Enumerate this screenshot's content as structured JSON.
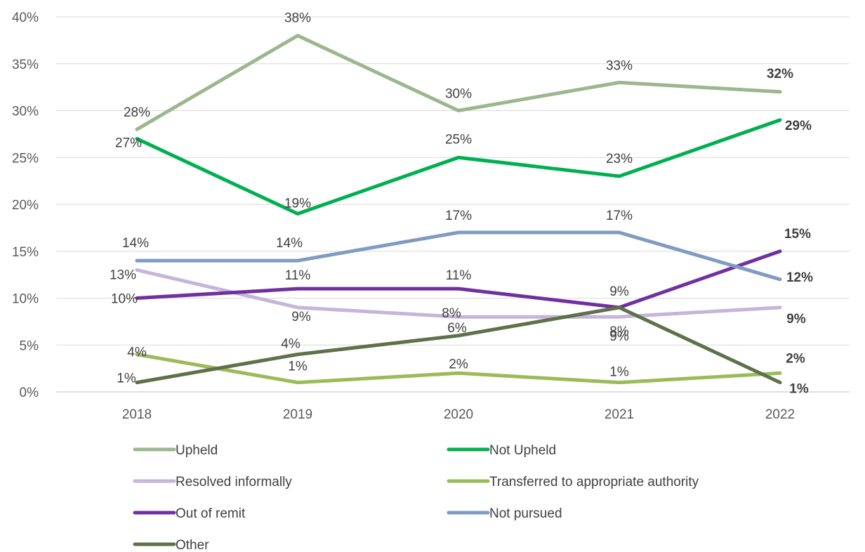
{
  "chart_data": {
    "type": "line",
    "title": "",
    "xlabel": "",
    "ylabel": "",
    "categories": [
      "2018",
      "2019",
      "2020",
      "2021",
      "2022"
    ],
    "ylim": [
      0,
      40
    ],
    "yticks": [
      "0%",
      "5%",
      "10%",
      "15%",
      "20%",
      "25%",
      "30%",
      "35%",
      "40%"
    ],
    "grid": "horizontal",
    "legend_position": "bottom",
    "series": [
      {
        "name": "Upheld",
        "values": [
          28,
          38,
          30,
          33,
          32
        ],
        "labels": [
          "28%",
          "38%",
          "30%",
          "33%",
          "32%"
        ],
        "color": "#9CB68E"
      },
      {
        "name": "Not Upheld",
        "values": [
          27,
          19,
          25,
          23,
          29
        ],
        "labels": [
          "27%",
          "19%",
          "25%",
          "23%",
          "29%"
        ],
        "color": "#00B050"
      },
      {
        "name": "Resolved informally",
        "values": [
          13,
          9,
          8,
          8,
          9
        ],
        "labels": [
          "13%",
          "9%",
          "8%",
          "8%",
          "9%"
        ],
        "color": "#C5B5DA"
      },
      {
        "name": "Transferred to appropriate authority",
        "values": [
          4,
          1,
          2,
          1,
          2
        ],
        "labels": [
          "4%",
          "1%",
          "2%",
          "1%",
          "2%"
        ],
        "color": "#9BBB59"
      },
      {
        "name": "Out of remit",
        "values": [
          10,
          11,
          11,
          9,
          15
        ],
        "labels": [
          "10%",
          "11%",
          "11%",
          "9%",
          "15%"
        ],
        "color": "#7030A0"
      },
      {
        "name": "Not pursued",
        "values": [
          14,
          14,
          17,
          17,
          12
        ],
        "labels": [
          "14%",
          "14%",
          "17%",
          "17%",
          "12%"
        ],
        "color": "#7F9BC1"
      },
      {
        "name": "Other",
        "values": [
          1,
          4,
          6,
          9,
          1
        ],
        "labels": [
          "1%",
          "4%",
          "6%",
          "9%",
          "1%"
        ],
        "color": "#5E7148"
      }
    ]
  }
}
